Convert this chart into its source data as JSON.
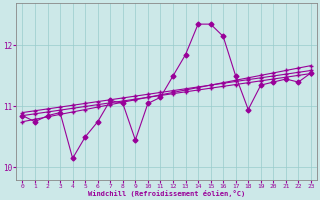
{
  "xlabel": "Windchill (Refroidissement éolien,°C)",
  "ylabel": "",
  "bg_color": "#cce8e8",
  "line_color": "#990099",
  "grid_color": "#99cccc",
  "x": [
    0,
    1,
    2,
    3,
    4,
    5,
    6,
    7,
    8,
    9,
    10,
    11,
    12,
    13,
    14,
    15,
    16,
    17,
    18,
    19,
    20,
    21,
    22,
    23
  ],
  "y_main": [
    10.85,
    10.75,
    10.85,
    10.9,
    10.15,
    10.5,
    10.75,
    11.1,
    11.05,
    10.45,
    11.05,
    11.15,
    11.5,
    11.85,
    12.35,
    12.35,
    12.15,
    11.5,
    10.95,
    11.35,
    11.4,
    11.45,
    11.4,
    11.55
  ],
  "y_trend1": [
    10.85,
    10.88,
    10.91,
    10.94,
    10.97,
    11.0,
    11.03,
    11.06,
    11.09,
    11.12,
    11.15,
    11.18,
    11.21,
    11.24,
    11.27,
    11.3,
    11.33,
    11.36,
    11.39,
    11.42,
    11.45,
    11.48,
    11.51,
    11.54
  ],
  "y_trend2": [
    10.75,
    10.79,
    10.83,
    10.87,
    10.91,
    10.95,
    10.99,
    11.03,
    11.07,
    11.11,
    11.15,
    11.19,
    11.23,
    11.27,
    11.31,
    11.35,
    11.39,
    11.43,
    11.47,
    11.51,
    11.55,
    11.59,
    11.63,
    11.67
  ],
  "y_trend3": [
    10.9,
    10.93,
    10.96,
    10.99,
    11.02,
    11.05,
    11.08,
    11.11,
    11.14,
    11.17,
    11.2,
    11.23,
    11.26,
    11.29,
    11.32,
    11.35,
    11.38,
    11.41,
    11.44,
    11.47,
    11.5,
    11.53,
    11.56,
    11.59
  ],
  "ylim": [
    9.8,
    12.7
  ],
  "xlim": [
    -0.5,
    23.5
  ],
  "yticks": [
    10,
    11,
    12
  ],
  "xticks": [
    0,
    1,
    2,
    3,
    4,
    5,
    6,
    7,
    8,
    9,
    10,
    11,
    12,
    13,
    14,
    15,
    16,
    17,
    18,
    19,
    20,
    21,
    22,
    23
  ],
  "marker_size": 2.5,
  "line_width": 0.8
}
